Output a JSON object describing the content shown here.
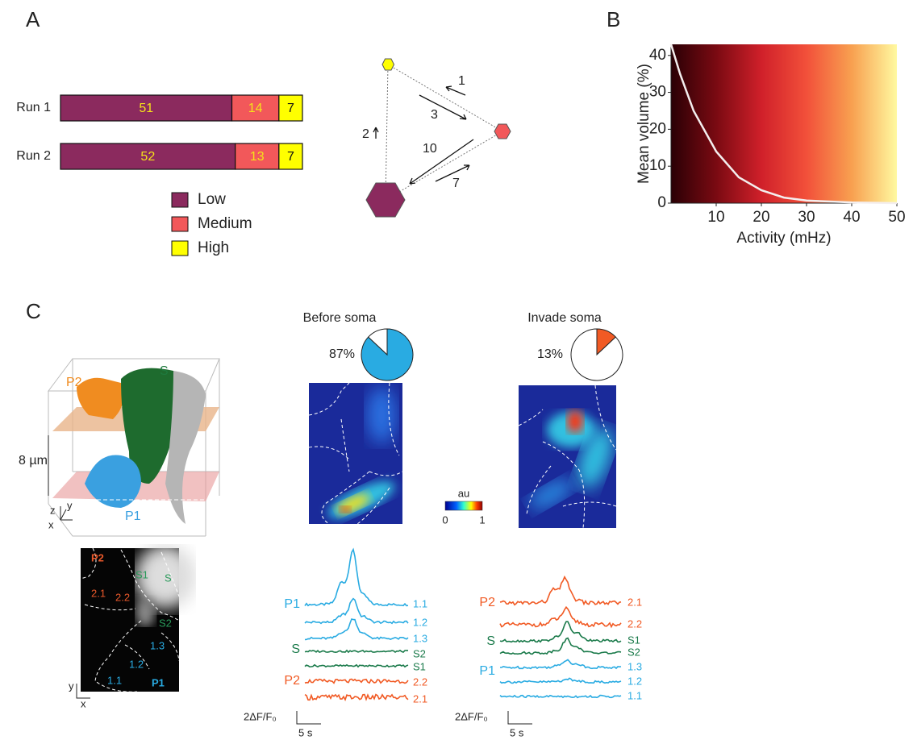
{
  "panel_labels": [
    "A",
    "B",
    "C"
  ],
  "chart_data": [
    {
      "type": "bar",
      "orientation": "horizontal",
      "stacked": true,
      "categories": [
        "Run 1",
        "Run 2"
      ],
      "series": [
        {
          "name": "Low",
          "color": "#8b2a5e",
          "values": [
            51,
            52
          ]
        },
        {
          "name": "Medium",
          "color": "#f2585a",
          "values": [
            14,
            13
          ]
        },
        {
          "name": "High",
          "color": "#ffff00",
          "values": [
            7,
            7
          ]
        }
      ]
    },
    {
      "type": "line",
      "xlabel": "Activity (mHz)",
      "ylabel": "Mean volume (%)",
      "x": [
        0,
        2,
        5,
        10,
        15,
        20,
        25,
        30,
        40,
        50
      ],
      "values": [
        43,
        35,
        25,
        14,
        7,
        3.5,
        1.5,
        0.7,
        0.2,
        0
      ],
      "color": "#f4eeee",
      "colormap": [
        "#2a0005",
        "#7a0a12",
        "#d0202a",
        "#f2503a",
        "#f8a050",
        "#fff9a0"
      ],
      "xlim": [
        0,
        50
      ],
      "ylim": [
        0,
        43
      ],
      "xticks": [
        10,
        20,
        30,
        40,
        50
      ],
      "yticks": [
        0,
        10,
        20,
        30,
        40
      ]
    },
    {
      "type": "pie",
      "title": "Before soma",
      "values": [
        87,
        13
      ],
      "value_labels": [
        "87%",
        null
      ],
      "colors": [
        "#29abe2",
        "#ffffff"
      ]
    },
    {
      "type": "pie",
      "title": "Invade soma",
      "values": [
        13,
        87
      ],
      "value_labels": [
        "13%",
        null
      ],
      "colors": [
        "#f15a24",
        "#ffffff"
      ]
    }
  ],
  "transition_diagram": {
    "labels": [
      1,
      3,
      2,
      10,
      7
    ]
  },
  "render_3d": {
    "labels": [
      "P2",
      "S",
      "P1"
    ],
    "scale": "8 µm",
    "axes": [
      "z",
      "y",
      "x"
    ]
  },
  "roi_image": {
    "labels": [
      "P2",
      "S1",
      "S",
      "2.1",
      "2.2",
      "S2",
      "1.3",
      "1.2",
      "1.1",
      "P1"
    ],
    "axes": [
      "y",
      "x"
    ]
  },
  "colorbar": {
    "label": "au",
    "ticks": [
      0,
      1
    ]
  },
  "traces": [
    {
      "groups": [
        "P1",
        "S",
        "P2"
      ],
      "labels": [
        "1.1",
        "1.2",
        "1.3",
        "S2",
        "S1",
        "2.2",
        "2.1"
      ],
      "scale_y": "2ΔF/F₀",
      "scale_x": "5 s"
    },
    {
      "groups": [
        "P2",
        "S",
        "P1"
      ],
      "labels": [
        "2.1",
        "2.2",
        "S1",
        "S2",
        "1.3",
        "1.2",
        "1.1"
      ],
      "scale_y": "2ΔF/F₀",
      "scale_x": "5 s"
    }
  ]
}
